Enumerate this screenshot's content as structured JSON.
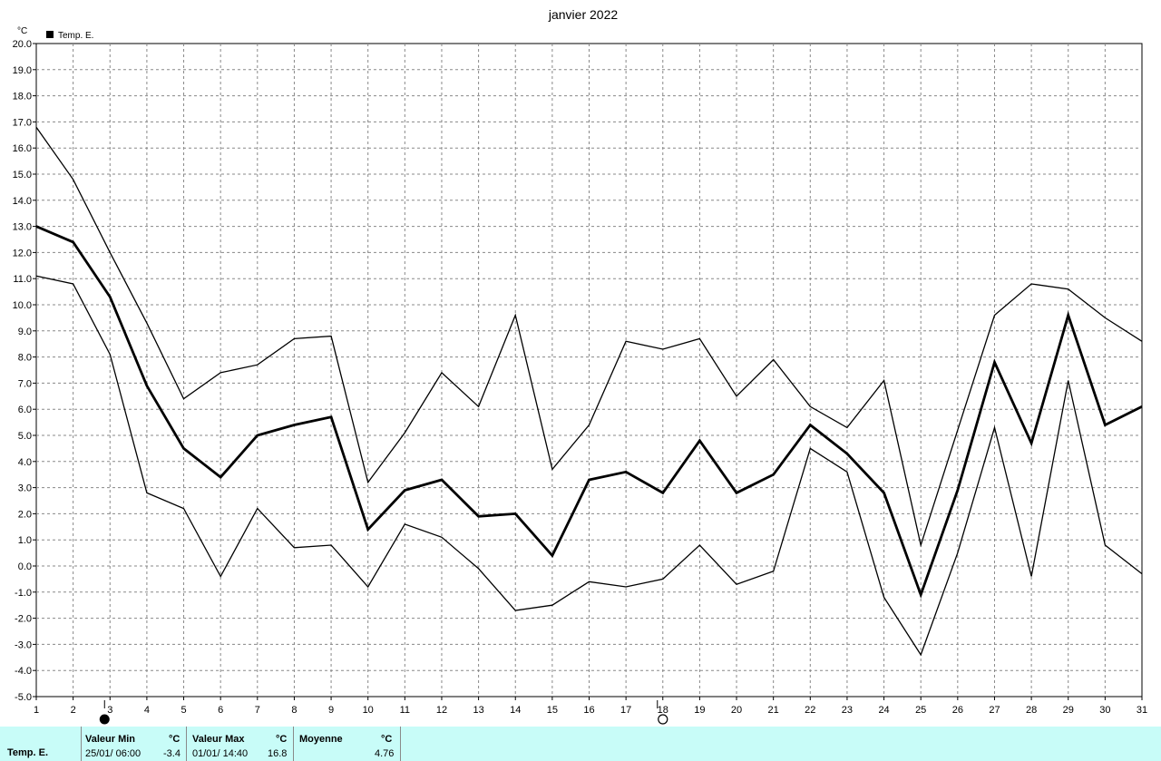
{
  "chart_data": {
    "type": "line",
    "title": "janvier 2022",
    "unit": "°C",
    "legend": "Temp. E.",
    "legend_position": "top-left",
    "x": [
      1,
      2,
      3,
      4,
      5,
      6,
      7,
      8,
      9,
      10,
      11,
      12,
      13,
      14,
      15,
      16,
      17,
      18,
      19,
      20,
      21,
      22,
      23,
      24,
      25,
      26,
      27,
      28,
      29,
      30,
      31
    ],
    "xlim": [
      1,
      31
    ],
    "ylim": [
      -5,
      20
    ],
    "y_ticks": [
      "-5.0",
      "-4.0",
      "-3.0",
      "-2.0",
      "-1.0",
      "0.0",
      "1.0",
      "2.0",
      "3.0",
      "4.0",
      "5.0",
      "6.0",
      "7.0",
      "8.0",
      "9.0",
      "10.0",
      "11.0",
      "12.0",
      "13.0",
      "14.0",
      "15.0",
      "16.0",
      "17.0",
      "18.0",
      "19.0",
      "20.0"
    ],
    "grid": true,
    "series": [
      {
        "values": [
          16.8,
          14.8,
          12.0,
          9.3,
          6.4,
          7.4,
          7.7,
          8.7,
          8.8,
          3.2,
          5.1,
          7.4,
          6.1,
          9.6,
          3.7,
          5.4,
          8.6,
          8.3,
          8.7,
          6.5,
          7.9,
          6.1,
          5.3,
          7.1,
          0.8,
          5.2,
          9.6,
          10.8,
          10.6,
          9.5,
          8.6
        ]
      },
      {
        "values": [
          13.0,
          12.4,
          10.3,
          6.9,
          4.5,
          3.4,
          5.0,
          5.4,
          5.7,
          1.4,
          2.9,
          3.3,
          1.9,
          2.0,
          0.4,
          3.3,
          3.6,
          2.8,
          4.8,
          2.8,
          3.5,
          5.4,
          4.3,
          2.8,
          -1.1,
          2.9,
          7.8,
          4.7,
          9.6,
          5.4,
          6.1
        ]
      },
      {
        "values": [
          11.1,
          10.8,
          8.1,
          2.8,
          2.2,
          -0.4,
          2.2,
          0.7,
          0.8,
          -0.8,
          1.6,
          1.1,
          -0.1,
          -1.7,
          -1.5,
          -0.6,
          -0.8,
          -0.5,
          0.8,
          -0.7,
          -0.2,
          4.5,
          3.6,
          -1.2,
          -3.4,
          0.5,
          5.3,
          -0.4,
          7.1,
          0.8,
          -0.3
        ]
      }
    ],
    "moon_phases": [
      {
        "day": 3,
        "phase": "new-moon"
      },
      {
        "day": 18,
        "phase": "full-moon"
      }
    ]
  },
  "summary": {
    "row_label": "Temp. E.",
    "min_label": "Valeur Min",
    "min_unit": "°C",
    "min_date": "25/01/  06:00",
    "min_value": "-3.4",
    "max_label": "Valeur Max",
    "max_unit": "°C",
    "max_date": "01/01/  14:40",
    "max_value": "16.8",
    "mean_label": "Moyenne",
    "mean_unit": "°C",
    "mean_value": "4.76"
  },
  "colors": {
    "footer_bg": "#c8fcf8",
    "line": "#000000",
    "grid": "#888888"
  }
}
